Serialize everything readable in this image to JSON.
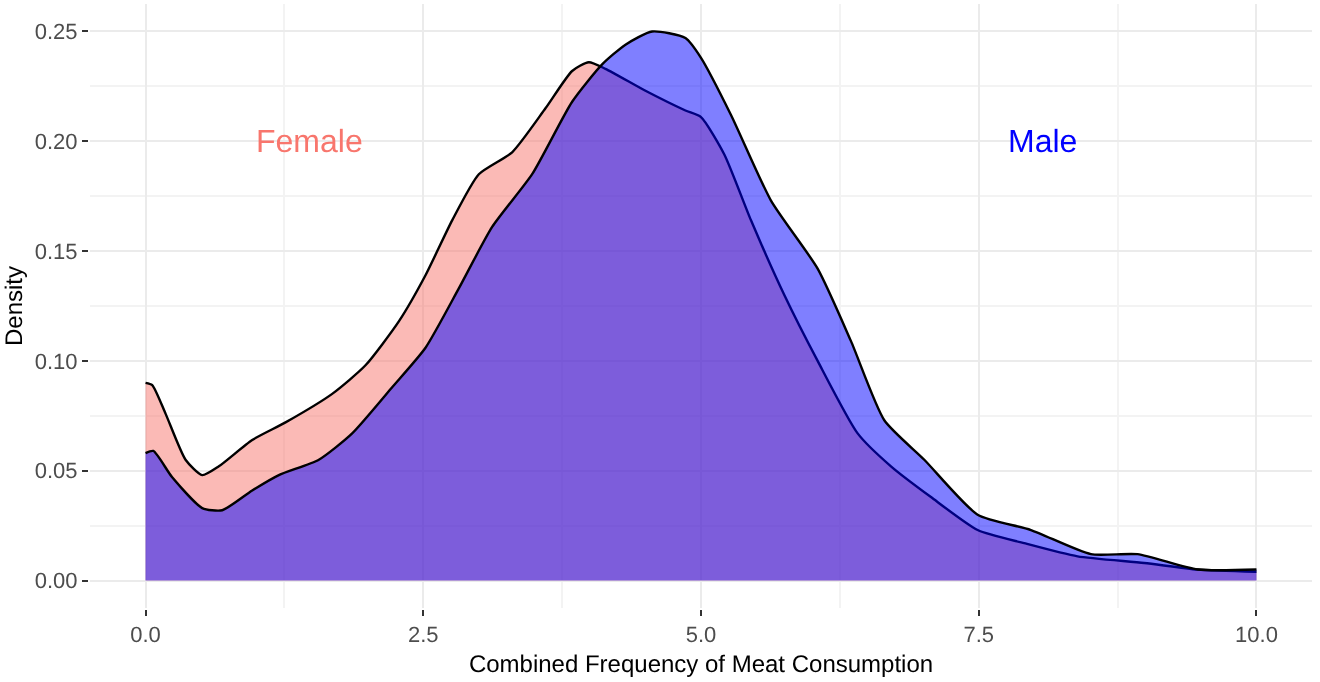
{
  "chart_data": {
    "type": "area",
    "xlabel": "Combined Frequency of Meat Consumption",
    "ylabel": "Density",
    "xlim": [
      -0.5,
      10.5
    ],
    "ylim": [
      -0.0125,
      0.2625
    ],
    "xticks": [
      {
        "value": 0,
        "label": "0.0"
      },
      {
        "value": 2.5,
        "label": "2.5"
      },
      {
        "value": 5,
        "label": "5.0"
      },
      {
        "value": 7.5,
        "label": "7.5"
      },
      {
        "value": 10,
        "label": "10.0"
      }
    ],
    "yticks": [
      {
        "value": 0,
        "label": "0.00"
      },
      {
        "value": 0.05,
        "label": "0.05"
      },
      {
        "value": 0.1,
        "label": "0.10"
      },
      {
        "value": 0.15,
        "label": "0.15"
      },
      {
        "value": 0.2,
        "label": "0.20"
      },
      {
        "value": 0.25,
        "label": "0.25"
      }
    ],
    "grid": true,
    "legend": false,
    "series": [
      {
        "name": "Female",
        "color": "#f8766d",
        "x": [
          0,
          0.06,
          0.18,
          0.36,
          0.51,
          0.66,
          0.96,
          1.26,
          1.68,
          1.98,
          2.28,
          2.52,
          2.76,
          3.0,
          3.3,
          3.6,
          3.84,
          3.99,
          4.14,
          4.5,
          4.86,
          5.0,
          5.21,
          5.45,
          5.75,
          6.05,
          6.41,
          6.71,
          7.07,
          7.49,
          7.91,
          8.39,
          8.99,
          9.47,
          10
        ],
        "values": [
          0.09,
          0.089,
          0.076,
          0.055,
          0.048,
          0.052,
          0.064,
          0.072,
          0.085,
          0.098,
          0.118,
          0.139,
          0.164,
          0.185,
          0.195,
          0.215,
          0.232,
          0.236,
          0.233,
          0.223,
          0.214,
          0.211,
          0.194,
          0.164,
          0.13,
          0.1,
          0.067,
          0.052,
          0.038,
          0.023,
          0.017,
          0.011,
          0.008,
          0.005,
          0.004
        ]
      },
      {
        "name": "Male",
        "color": "#0000ff",
        "x": [
          0,
          0.07,
          0.24,
          0.51,
          0.69,
          0.96,
          1.2,
          1.56,
          1.86,
          2.22,
          2.52,
          2.82,
          3.12,
          3.48,
          3.84,
          4.11,
          4.32,
          4.56,
          4.86,
          5.0,
          5.27,
          5.63,
          6.05,
          6.35,
          6.65,
          7.01,
          7.49,
          7.97,
          8.51,
          8.93,
          9.47,
          10
        ],
        "values": [
          0.058,
          0.059,
          0.047,
          0.033,
          0.032,
          0.041,
          0.048,
          0.055,
          0.067,
          0.088,
          0.106,
          0.133,
          0.161,
          0.185,
          0.218,
          0.235,
          0.244,
          0.25,
          0.247,
          0.238,
          0.212,
          0.173,
          0.142,
          0.109,
          0.073,
          0.055,
          0.03,
          0.023,
          0.012,
          0.012,
          0.005,
          0.005
        ]
      }
    ]
  }
}
